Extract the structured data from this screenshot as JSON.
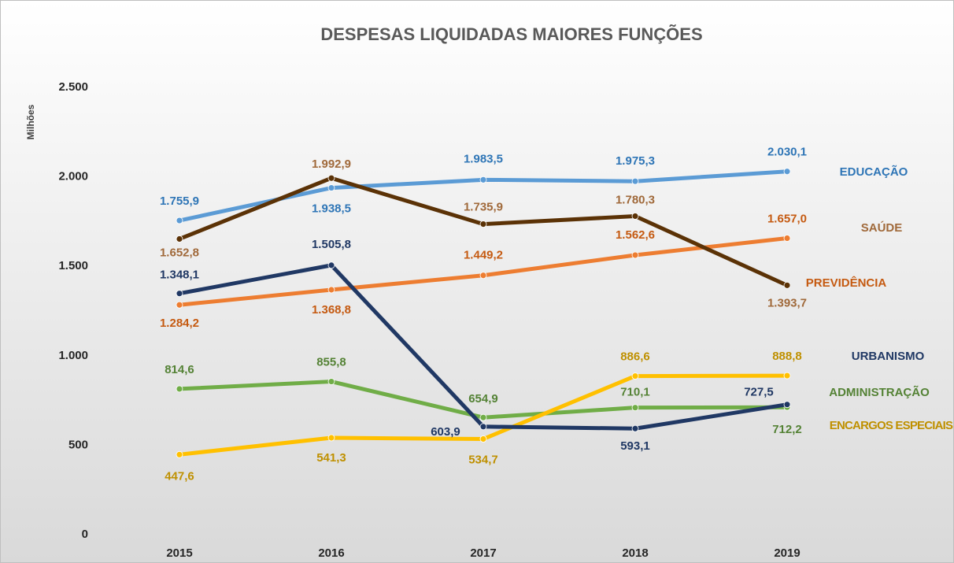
{
  "chart_data": {
    "type": "line",
    "title": "DESPESAS LIQUIDADAS MAIORES FUNÇÕES",
    "y_label": "Milhões",
    "categories": [
      "2015",
      "2016",
      "2017",
      "2018",
      "2019"
    ],
    "ylim": [
      0,
      2500
    ],
    "yticks": [
      0,
      500,
      {
        "value": 1000,
        "label": "1.000"
      },
      {
        "value": 1500,
        "label": "1.500"
      },
      {
        "value": 2000,
        "label": "2.000"
      },
      {
        "value": 2500,
        "label": "2.500"
      }
    ],
    "grid": false,
    "series": [
      {
        "name": "EDUCAÇÃO",
        "color": "#5b9bd5",
        "label_color": "#2e75b6",
        "values": [
          1755.9,
          1938.5,
          1983.5,
          1975.3,
          2030.1
        ],
        "value_labels": [
          "1.755,9",
          "1.938,5",
          "1.983,5",
          "1.975,3",
          "2.030,1"
        ]
      },
      {
        "name": "SAÚDE",
        "color": "#5b3206",
        "label_color": "#a0693a",
        "values": [
          1652.8,
          1992.9,
          1735.9,
          1780.3,
          1393.7
        ],
        "value_labels": [
          "1.652,8",
          "1.992,9",
          "1.735,9",
          "1.780,3",
          "1.393,7"
        ]
      },
      {
        "name": "PREVIDÊNCIA",
        "color": "#ed7d31",
        "label_color": "#c55a11",
        "values": [
          1284.2,
          1368.8,
          1449.2,
          1562.6,
          1657.0
        ],
        "value_labels": [
          "1.284,2",
          "1.368,8",
          "1.449,2",
          "1.562,6",
          "1.657,0"
        ]
      },
      {
        "name": "URBANISMO",
        "color": "#203864",
        "label_color": "#203864",
        "values": [
          1348.1,
          1505.8,
          603.9,
          593.1,
          727.5
        ],
        "value_labels": [
          "1.348,1",
          "1.505,8",
          "603,9",
          "593,1",
          "727,5"
        ]
      },
      {
        "name": "ADMINISTRAÇÃO",
        "color": "#70ad47",
        "label_color": "#548235",
        "values": [
          814.6,
          855.8,
          654.9,
          710.1,
          712.2
        ],
        "value_labels": [
          "814,6",
          "855,8",
          "654,9",
          "710,1",
          "712,2"
        ]
      },
      {
        "name": "ENCARGOS ESPECIAIS",
        "color": "#ffc000",
        "label_color": "#bf9000",
        "values": [
          447.6,
          541.3,
          534.7,
          886.6,
          888.8
        ],
        "value_labels": [
          "447,6",
          "541,3",
          "534,7",
          "886,6",
          "888,8"
        ]
      }
    ]
  }
}
